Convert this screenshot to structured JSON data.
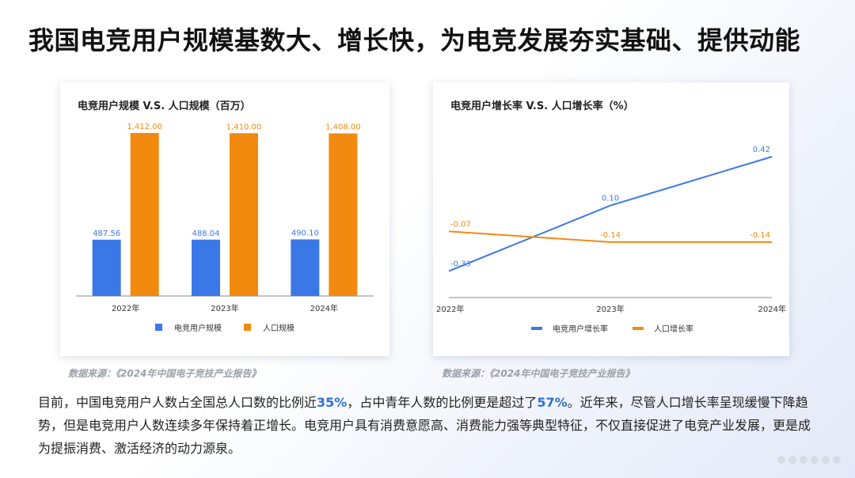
{
  "page": {
    "title": "我国电竞用户规模基数大、增长快，为电竞发展夯实基础、提供动能",
    "source_left": "数据来源：《2024年中国电子竞技产业报告》",
    "source_right": "数据来源：《2024年中国电子竞技产业报告》",
    "summary": {
      "p1": "目前，中国电竞用户人数占全国总人口数的比例近",
      "h1": "35%",
      "p2": "，占中青年人数的比例更是超过了",
      "h2": "57%",
      "p3": "。近年来，尽管人口增长率呈现缓慢下降趋势，但是电竞用户人数连续多年保持着正增长。电竞用户具有消费意愿高、消费能力强等典型特征，不仅直接促进了电竞产业发展，更是成为提振消费、激活经济的动力源泉。"
    }
  },
  "colors": {
    "blue": "#3b78e7",
    "orange": "#f28a0f",
    "axis": "#888888",
    "text": "#333333"
  },
  "chart_data": [
    {
      "type": "bar",
      "title": "电竞用户规模 V.S. 人口规模（百万）",
      "categories": [
        "2022年",
        "2023年",
        "2024年"
      ],
      "series": [
        {
          "name": "电竞用户规模",
          "values": [
            487.56,
            488.04,
            490.1
          ],
          "labels": [
            "487.56",
            "488.04",
            "490.10"
          ],
          "color": "#3b78e7"
        },
        {
          "name": "人口规模",
          "values": [
            1412.0,
            1410.0,
            1408.0
          ],
          "labels": [
            "1,412.00",
            "1,410.00",
            "1,408.00"
          ],
          "color": "#f28a0f"
        }
      ],
      "ylim": [
        0,
        1412
      ],
      "legend": "bottom",
      "grid": false
    },
    {
      "type": "line",
      "title": "电竞用户增长率 V.S. 人口增长率（%）",
      "categories": [
        "2022年",
        "2023年",
        "2024年"
      ],
      "series": [
        {
          "name": "电竞用户增长率",
          "values": [
            -0.33,
            0.1,
            0.42
          ],
          "labels": [
            "-0.33",
            "0.10",
            "0.42"
          ],
          "color": "#3b78e7"
        },
        {
          "name": "人口增长率",
          "values": [
            -0.07,
            -0.14,
            -0.14
          ],
          "labels": [
            "-0.07",
            "-0.14",
            "-0.14"
          ],
          "color": "#f28a0f"
        }
      ],
      "ylim": [
        -0.4,
        0.42
      ],
      "legend": "bottom",
      "grid": false
    }
  ]
}
